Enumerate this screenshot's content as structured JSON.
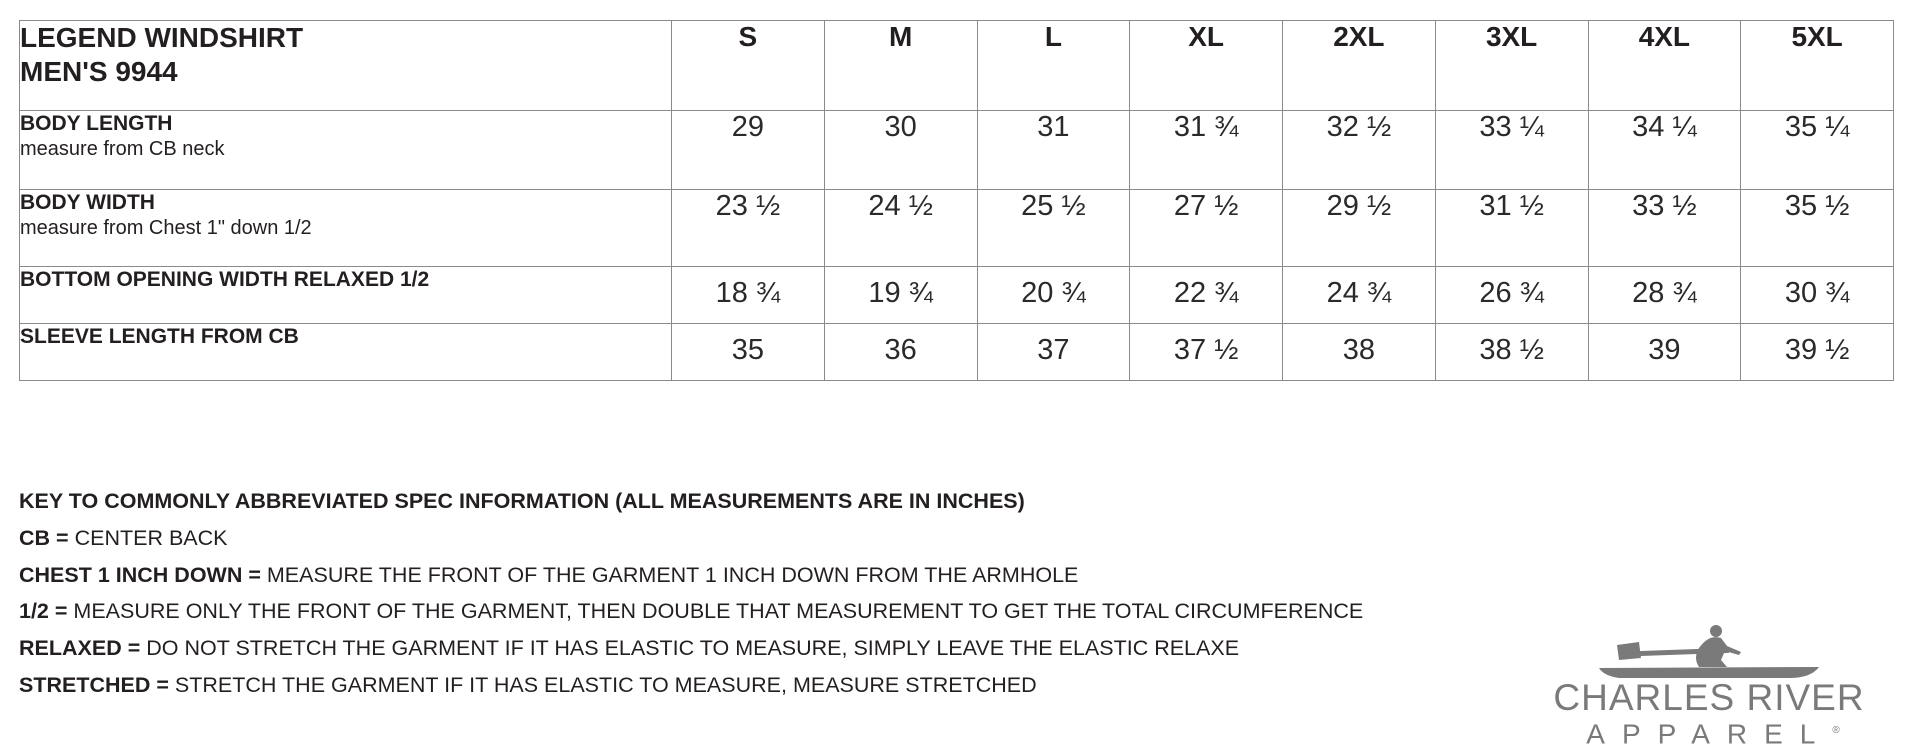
{
  "table": {
    "title_line1": "LEGEND WINDSHIRT",
    "title_line2": "MEN'S 9944",
    "sizes": [
      "S",
      "M",
      "L",
      "XL",
      "2XL",
      "3XL",
      "4XL",
      "5XL"
    ],
    "rows": [
      {
        "label": "BODY LENGTH",
        "sub": "measure from CB neck",
        "values": [
          "29",
          "30",
          "31",
          "31 ¾",
          "32 ½",
          "33 ¼",
          "34 ¼",
          "35 ¼"
        ]
      },
      {
        "label": "BODY WIDTH",
        "sub": "measure from Chest 1\" down 1/2",
        "values": [
          "23 ½",
          "24 ½",
          "25 ½",
          "27 ½",
          "29 ½",
          "31 ½",
          "33 ½",
          "35 ½"
        ]
      },
      {
        "label": "BOTTOM OPENING WIDTH RELAXED 1/2",
        "sub": "",
        "values": [
          "18 ¾",
          "19 ¾",
          "20 ¾",
          "22 ¾",
          "24 ¾",
          "26 ¾",
          "28 ¾",
          "30 ¾"
        ]
      },
      {
        "label": "SLEEVE LENGTH FROM CB",
        "sub": "",
        "values": [
          "35",
          "36",
          "37",
          "37 ½",
          "38",
          "38 ½",
          "39",
          "39 ½"
        ]
      }
    ]
  },
  "key": {
    "heading": "KEY TO COMMONLY ABBREVIATED SPEC INFORMATION (ALL MEASUREMENTS ARE IN INCHES)",
    "items": [
      {
        "term": "CB =",
        "definition": "CENTER BACK"
      },
      {
        "term": "CHEST 1 INCH DOWN =",
        "definition": "MEASURE THE FRONT OF THE GARMENT 1 INCH DOWN FROM THE ARMHOLE"
      },
      {
        "term": "1/2 =",
        "definition": "MEASURE ONLY THE FRONT OF THE GARMENT, THEN DOUBLE THAT MEASUREMENT TO GET THE TOTAL CIRCUMFERENCE"
      },
      {
        "term": "RELAXED =",
        "definition": "DO NOT STRETCH THE GARMENT IF IT HAS ELASTIC TO MEASURE, SIMPLY LEAVE THE ELASTIC RELAXE"
      },
      {
        "term": "STRETCHED =",
        "definition": "STRETCH THE GARMENT IF IT HAS ELASTIC TO MEASURE, MEASURE STRETCHED"
      }
    ]
  },
  "logo": {
    "brand": "CHARLES RIVER",
    "sub": "APPAREL",
    "mark": "®",
    "color": "#7a7a7a"
  }
}
